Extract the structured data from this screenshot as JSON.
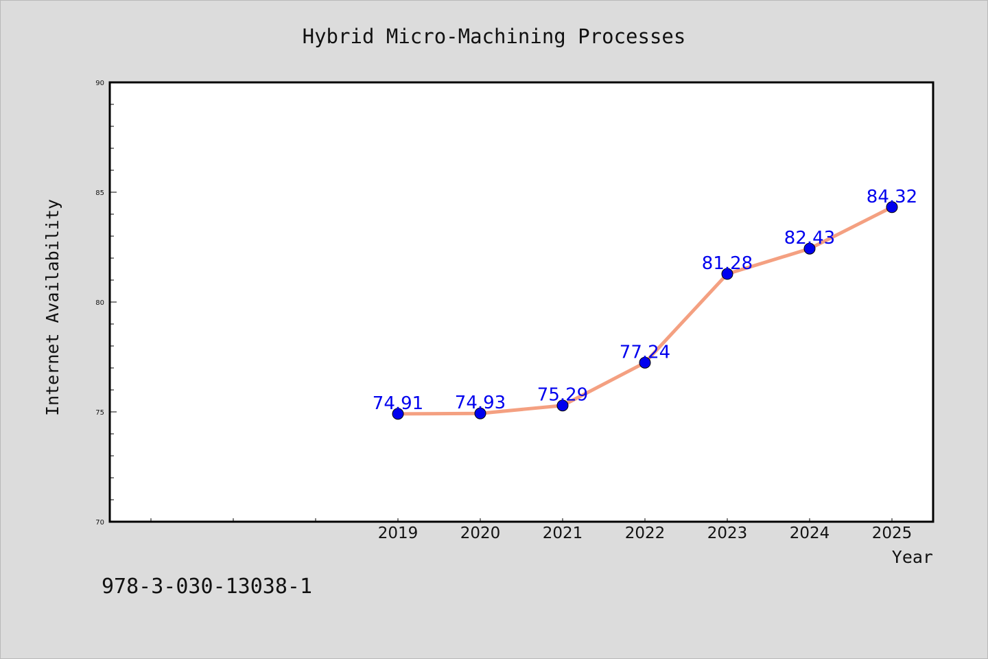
{
  "chart_data": {
    "type": "line",
    "title": "Hybrid Micro-Machining Processes",
    "xlabel": "Year",
    "ylabel": "Internet Availability",
    "categories": [
      "2019",
      "2020",
      "2021",
      "2022",
      "2023",
      "2024",
      "2025"
    ],
    "series": [
      {
        "values": [
          74.91,
          74.93,
          75.29,
          77.24,
          81.28,
          82.43,
          84.32
        ],
        "labels": [
          "74.91",
          "74.93",
          "75.29",
          "77.24",
          "81.28",
          "82.43",
          "84.32"
        ]
      }
    ],
    "ylim": [
      70,
      90
    ],
    "yticks": [
      "70",
      "75",
      "80",
      "85",
      "90"
    ],
    "grid": false,
    "line_color": "#f4a081",
    "marker_color": "#0000ee",
    "label_color": "#0000ee"
  },
  "footnote": "978-3-030-13038-1"
}
